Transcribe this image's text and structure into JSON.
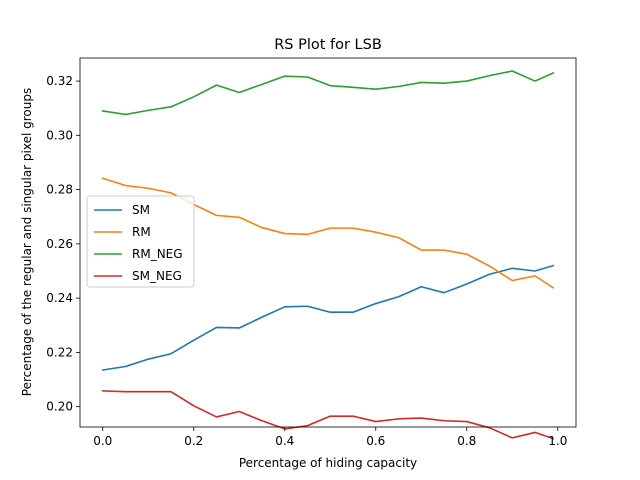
{
  "chart_data": {
    "type": "line",
    "title": "RS Plot for LSB",
    "xlabel": "Percentage of hiding capacity",
    "ylabel": "Percentage of the regular and singular pixel groups",
    "xlim": [
      -0.05,
      1.04
    ],
    "ylim": [
      0.1925,
      0.3285
    ],
    "xticks": [
      0.0,
      0.2,
      0.4,
      0.6,
      0.8,
      1.0
    ],
    "xtick_labels": [
      "0.0",
      "0.2",
      "0.4",
      "0.6",
      "0.8",
      "1.0"
    ],
    "yticks": [
      0.2,
      0.22,
      0.24,
      0.26,
      0.28,
      0.3,
      0.32
    ],
    "ytick_labels": [
      "0.20",
      "0.22",
      "0.24",
      "0.26",
      "0.28",
      "0.30",
      "0.32"
    ],
    "grid": false,
    "legend_position": "center-left",
    "x": [
      0.0,
      0.05,
      0.1,
      0.15,
      0.2,
      0.25,
      0.3,
      0.35,
      0.4,
      0.45,
      0.5,
      0.55,
      0.6,
      0.65,
      0.7,
      0.75,
      0.8,
      0.85,
      0.9,
      0.95,
      0.99
    ],
    "series": [
      {
        "name": "SM",
        "color": "#1f77b4",
        "values": [
          0.2135,
          0.2148,
          0.2175,
          0.2195,
          0.2245,
          0.2292,
          0.229,
          0.233,
          0.2368,
          0.237,
          0.2348,
          0.2348,
          0.238,
          0.2405,
          0.2442,
          0.242,
          0.2452,
          0.2488,
          0.251,
          0.25,
          0.252
        ]
      },
      {
        "name": "RM",
        "color": "#ff7f0e",
        "values": [
          0.2842,
          0.2815,
          0.2805,
          0.2788,
          0.2745,
          0.2705,
          0.2698,
          0.266,
          0.2638,
          0.2635,
          0.2658,
          0.2658,
          0.2643,
          0.2623,
          0.2577,
          0.2577,
          0.2562,
          0.2518,
          0.2465,
          0.2482,
          0.2438
        ]
      },
      {
        "name": "RM_NEG",
        "color": "#2ca02c",
        "values": [
          0.309,
          0.3077,
          0.3092,
          0.3105,
          0.3142,
          0.3185,
          0.3158,
          0.3188,
          0.3218,
          0.3215,
          0.3183,
          0.3177,
          0.317,
          0.318,
          0.3195,
          0.3192,
          0.32,
          0.322,
          0.3237,
          0.32,
          0.323
        ]
      },
      {
        "name": "SM_NEG",
        "color": "#d62728",
        "values": [
          0.2058,
          0.2055,
          0.2055,
          0.2055,
          0.2003,
          0.1962,
          0.1982,
          0.1948,
          0.1918,
          0.193,
          0.1965,
          0.1965,
          0.1945,
          0.1955,
          0.1958,
          0.1948,
          0.1945,
          0.1922,
          0.1885,
          0.1905,
          0.1882
        ]
      }
    ]
  }
}
